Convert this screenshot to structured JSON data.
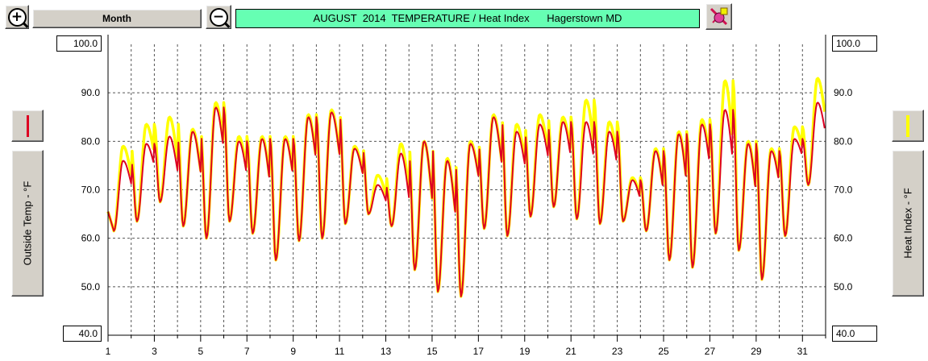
{
  "toolbar": {
    "zoom_in_icon": "zoom-in-icon",
    "zoom_out_icon": "zoom-out-icon",
    "period_label": "Month",
    "title": "AUGUST  2014  TEMPERATURE / Heat Index      Hagerstown MD",
    "options_icon": "paint-palette-icon"
  },
  "colors": {
    "title_bg": "#66ffb3",
    "temp_series": "#dd0022",
    "heat_series": "#ffff00",
    "button_face": "#d4d0c8"
  },
  "chart_data": {
    "type": "line",
    "title": "AUGUST  2014  TEMPERATURE / Heat Index      Hagerstown MD",
    "xlabel": "",
    "ylabel": "Outside Temp - °F",
    "ylabel_right": "Heat Index - °F",
    "xlim": [
      1,
      32
    ],
    "ylim": [
      40,
      100
    ],
    "grid": true,
    "x_ticks": [
      "1",
      "3",
      "5",
      "7",
      "9",
      "11",
      "13",
      "15",
      "17",
      "19",
      "21",
      "23",
      "25",
      "27",
      "29",
      "31"
    ],
    "y_ticks": [
      "40.0",
      "50.0",
      "60.0",
      "70.0",
      "80.0",
      "90.0",
      "100.0"
    ],
    "y_ticks_right": [
      "40.0",
      "50.0",
      "60.0",
      "70.0",
      "80.0",
      "90.0",
      "100.0"
    ],
    "series": [
      {
        "name": "Outside Temp - °F",
        "color": "#dd0022",
        "daily_low": [
          61.5,
          63.5,
          67.5,
          62.5,
          60,
          63.5,
          61,
          55.5,
          59.5,
          60,
          63,
          65,
          62.5,
          53.5,
          49,
          48,
          62,
          60.5,
          64.5,
          66.5,
          64,
          63,
          63.5,
          61.5,
          55.5,
          54,
          61,
          57.5,
          51.5,
          60.5,
          71
        ],
        "daily_high": [
          76,
          79.5,
          81,
          82,
          87,
          80,
          80.5,
          80.5,
          85,
          86,
          78.5,
          71,
          77.5,
          80,
          76,
          79.5,
          85,
          82,
          83.5,
          84,
          84,
          82,
          72,
          78,
          81.5,
          83.5,
          86.5,
          79.5,
          78,
          80.5,
          88
        ]
      },
      {
        "name": "Heat Index - °F",
        "color": "#ffff00",
        "daily_low": [
          61.5,
          63.5,
          67.5,
          62.5,
          60,
          63.5,
          61,
          55.5,
          59.5,
          60,
          63,
          65,
          62.5,
          53.5,
          49,
          48,
          62,
          60.5,
          64.5,
          66.5,
          64,
          63,
          63.5,
          61.5,
          55.5,
          54,
          61,
          57.5,
          51.5,
          60.5,
          71
        ],
        "daily_high": [
          79,
          83.5,
          85,
          82.5,
          88,
          81,
          81,
          81,
          85.5,
          86.5,
          79,
          73,
          79.5,
          80,
          76.5,
          80,
          85.5,
          83.5,
          85.5,
          85,
          88.5,
          84,
          72.5,
          78.5,
          82,
          84.5,
          92.5,
          80,
          78.5,
          83,
          93
        ]
      }
    ]
  }
}
